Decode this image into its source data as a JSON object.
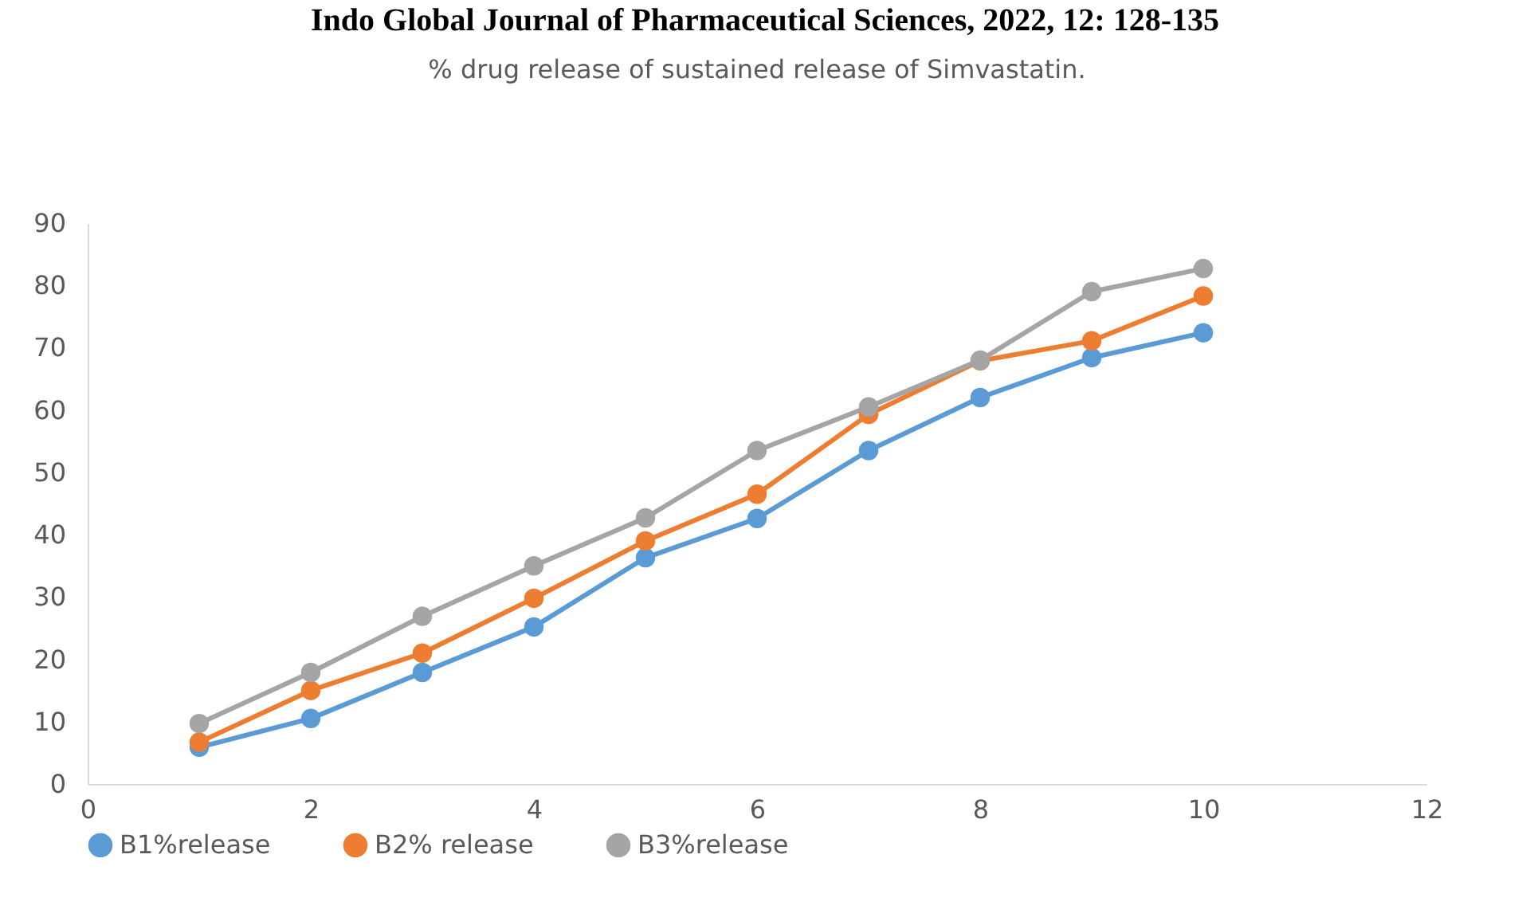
{
  "chart_data": {
    "type": "line",
    "title": "% drug release of sustained release of Simvastatin.",
    "annotations": [
      "Indo Global Journal of Pharmaceutical Sciences, 2022, 12: 128-135"
    ],
    "x": [
      1,
      2,
      3,
      4,
      5,
      6,
      7,
      8,
      9,
      10
    ],
    "series": [
      {
        "name": "B1%release",
        "color": "#5b9bd5",
        "values": [
          5.9,
          10.5,
          17.9,
          25.2,
          36.3,
          42.6,
          53.5,
          62,
          68.4,
          72.4
        ]
      },
      {
        "name": "B2% release",
        "color": "#ed7d31",
        "values": [
          6.7,
          15,
          21,
          29.8,
          39,
          46.5,
          59.3,
          67.9,
          71.1,
          78.3
        ]
      },
      {
        "name": "B3%release",
        "color": "#a5a5a5",
        "values": [
          9.7,
          17.9,
          26.9,
          35,
          42.7,
          53.5,
          60.5,
          68,
          79,
          82.7
        ]
      }
    ],
    "xlim": [
      0,
      12
    ],
    "xticks": [
      0,
      2,
      4,
      6,
      8,
      10,
      12
    ],
    "ylim": [
      0,
      90
    ],
    "yticks": [
      0,
      10,
      20,
      30,
      40,
      50,
      60,
      70,
      80,
      90
    ],
    "grid": false,
    "legend": "bottom",
    "marker": "circle",
    "line_style": "solid"
  }
}
